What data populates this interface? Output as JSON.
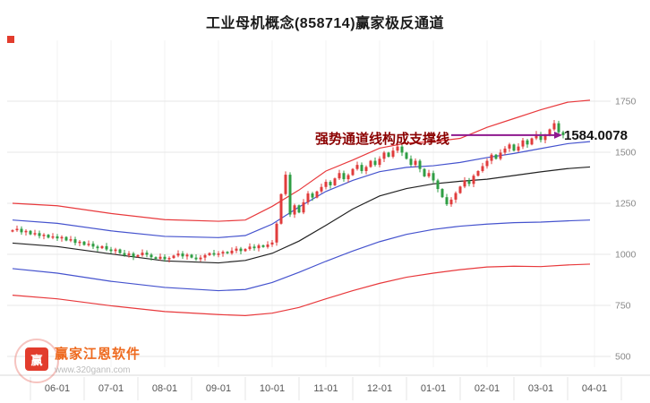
{
  "chart_data": {
    "type": "candlestick",
    "title": "工业母机概念(858714)赢家极反通道",
    "x_axis": {
      "labels": [
        "06-01",
        "07-01",
        "08-01",
        "09-01",
        "10-01",
        "11-01",
        "12-01",
        "01-01",
        "02-01",
        "03-01",
        "04-01"
      ],
      "label_candle_indices": [
        10,
        22,
        34,
        46,
        58,
        70,
        82,
        94,
        106,
        118,
        130
      ]
    },
    "y_axis": {
      "ticks": [
        500,
        750,
        1000,
        1250,
        1500,
        1750
      ],
      "range": [
        500,
        1800
      ]
    },
    "candles": {
      "first_open": 1112,
      "closes": [
        1118,
        1125,
        1108,
        1115,
        1098,
        1104,
        1090,
        1096,
        1082,
        1088,
        1078,
        1085,
        1068,
        1074,
        1056,
        1062,
        1046,
        1052,
        1038,
        1030,
        1040,
        1024,
        1016,
        1024,
        1006,
        996,
        1004,
        988,
        996,
        1008,
        998,
        986,
        978,
        988,
        976,
        982,
        994,
        1004,
        990,
        998,
        984,
        976,
        984,
        996,
        1006,
        998,
        1004,
        1012,
        1005,
        1018,
        1028,
        1016,
        1026,
        1038,
        1030,
        1044,
        1036,
        1048,
        1058,
        1150,
        1295,
        1390,
        1195,
        1240,
        1205,
        1255,
        1298,
        1278,
        1308,
        1330,
        1355,
        1338,
        1372,
        1398,
        1368,
        1388,
        1418,
        1438,
        1408,
        1428,
        1458,
        1438,
        1468,
        1498,
        1478,
        1508,
        1528,
        1498,
        1468,
        1438,
        1458,
        1418,
        1382,
        1398,
        1362,
        1320,
        1280,
        1245,
        1268,
        1300,
        1332,
        1362,
        1345,
        1385,
        1408,
        1432,
        1458,
        1488,
        1468,
        1498,
        1518,
        1538,
        1508,
        1528,
        1558,
        1538,
        1568,
        1588,
        1560,
        1582,
        1612,
        1642,
        1598,
        1584
      ]
    },
    "channel_lines": [
      {
        "name": "outer-upper",
        "color": "#e8393c",
        "points": [
          [
            0,
            1250
          ],
          [
            10,
            1238
          ],
          [
            22,
            1200
          ],
          [
            34,
            1170
          ],
          [
            46,
            1162
          ],
          [
            52,
            1168
          ],
          [
            58,
            1235
          ],
          [
            64,
            1315
          ],
          [
            70,
            1408
          ],
          [
            76,
            1462
          ],
          [
            82,
            1520
          ],
          [
            88,
            1545
          ],
          [
            94,
            1552
          ],
          [
            100,
            1568
          ],
          [
            106,
            1622
          ],
          [
            112,
            1665
          ],
          [
            118,
            1708
          ],
          [
            124,
            1745
          ],
          [
            129,
            1755
          ]
        ]
      },
      {
        "name": "inner-upper",
        "color": "#4553ce",
        "points": [
          [
            0,
            1168
          ],
          [
            10,
            1152
          ],
          [
            22,
            1115
          ],
          [
            34,
            1088
          ],
          [
            46,
            1082
          ],
          [
            52,
            1092
          ],
          [
            58,
            1148
          ],
          [
            64,
            1232
          ],
          [
            70,
            1308
          ],
          [
            76,
            1362
          ],
          [
            82,
            1405
          ],
          [
            88,
            1426
          ],
          [
            94,
            1434
          ],
          [
            100,
            1450
          ],
          [
            106,
            1474
          ],
          [
            112,
            1494
          ],
          [
            118,
            1518
          ],
          [
            124,
            1542
          ],
          [
            129,
            1552
          ]
        ]
      },
      {
        "name": "middle",
        "color": "#222222",
        "points": [
          [
            0,
            1055
          ],
          [
            10,
            1038
          ],
          [
            22,
            1002
          ],
          [
            34,
            968
          ],
          [
            46,
            958
          ],
          [
            52,
            970
          ],
          [
            58,
            1005
          ],
          [
            64,
            1065
          ],
          [
            70,
            1142
          ],
          [
            76,
            1222
          ],
          [
            82,
            1286
          ],
          [
            88,
            1322
          ],
          [
            94,
            1345
          ],
          [
            100,
            1358
          ],
          [
            106,
            1368
          ],
          [
            112,
            1386
          ],
          [
            118,
            1404
          ],
          [
            124,
            1420
          ],
          [
            129,
            1428
          ]
        ]
      },
      {
        "name": "inner-lower",
        "color": "#4553ce",
        "points": [
          [
            0,
            930
          ],
          [
            10,
            908
          ],
          [
            22,
            868
          ],
          [
            34,
            838
          ],
          [
            46,
            822
          ],
          [
            52,
            828
          ],
          [
            58,
            862
          ],
          [
            64,
            912
          ],
          [
            70,
            966
          ],
          [
            76,
            1016
          ],
          [
            82,
            1062
          ],
          [
            88,
            1098
          ],
          [
            94,
            1122
          ],
          [
            100,
            1138
          ],
          [
            106,
            1148
          ],
          [
            112,
            1155
          ],
          [
            118,
            1158
          ],
          [
            124,
            1164
          ],
          [
            129,
            1168
          ]
        ]
      },
      {
        "name": "outer-lower",
        "color": "#e8393c",
        "points": [
          [
            0,
            800
          ],
          [
            10,
            782
          ],
          [
            22,
            748
          ],
          [
            34,
            720
          ],
          [
            46,
            705
          ],
          [
            52,
            700
          ],
          [
            58,
            712
          ],
          [
            64,
            740
          ],
          [
            70,
            782
          ],
          [
            76,
            822
          ],
          [
            82,
            858
          ],
          [
            88,
            888
          ],
          [
            94,
            908
          ],
          [
            100,
            925
          ],
          [
            106,
            938
          ],
          [
            112,
            942
          ],
          [
            118,
            940
          ],
          [
            124,
            948
          ],
          [
            129,
            952
          ]
        ]
      }
    ],
    "support_line": {
      "value": 1584.0078,
      "from_index": 98,
      "to_index": 121,
      "color": "#8e188e"
    },
    "annotations": {
      "support_text": "强势通道线构成支撑线",
      "price_label": "1584.0078"
    },
    "colors": {
      "up": "#e03c3c",
      "down": "#2f9e44",
      "grid": "#e7e7e7",
      "grid_vertical": "#f3f3f3",
      "axis_text": "#888888",
      "x_text": "#555555",
      "annotation_text": "#8b0000",
      "support_line": "#8e188e"
    },
    "legend_position": "none",
    "grid": true
  },
  "watermark": {
    "logo_char": "赢",
    "brand": "赢家江恩软件",
    "url": "www.320gann.com"
  }
}
